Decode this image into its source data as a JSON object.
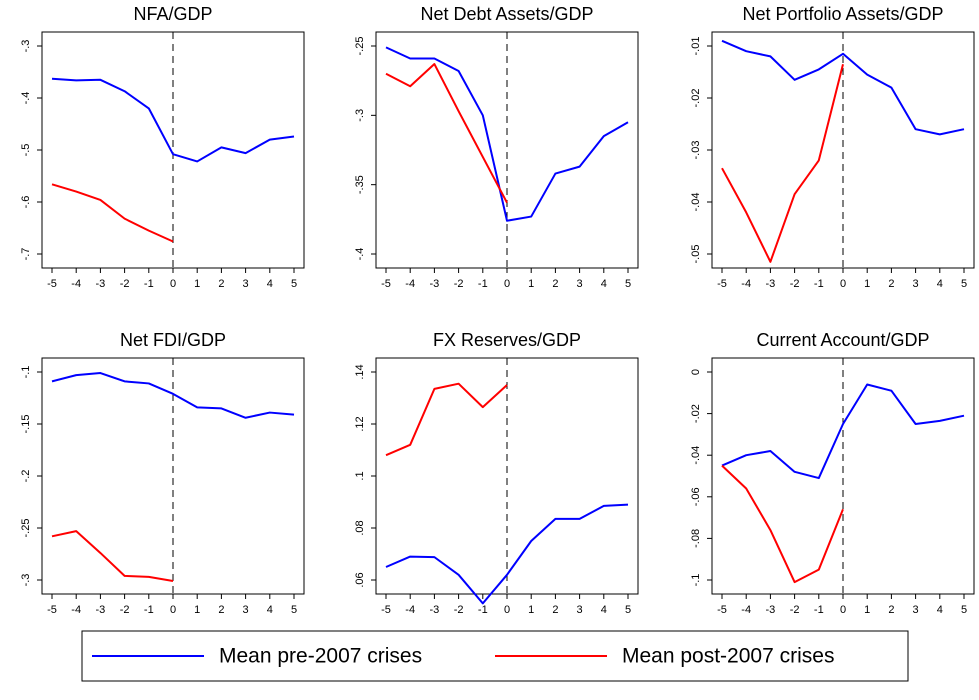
{
  "chart_data": [
    {
      "type": "line",
      "title": "NFA/GDP",
      "x": [
        -5,
        -4,
        -3,
        -2,
        -1,
        0,
        1,
        2,
        3,
        4,
        5
      ],
      "xlim": [
        -5,
        5
      ],
      "xticks": [
        -5,
        -4,
        -3,
        -2,
        -1,
        0,
        1,
        2,
        3,
        4,
        5
      ],
      "ylim": [
        -0.7,
        -0.3
      ],
      "yticks": [
        {
          "value": -0.3,
          "label": "-.3"
        },
        {
          "value": -0.4,
          "label": "-.4"
        },
        {
          "value": -0.5,
          "label": "-.5"
        },
        {
          "value": -0.6,
          "label": "-.6"
        },
        {
          "value": -0.7,
          "label": "-.7"
        }
      ],
      "vline": 0,
      "series": [
        {
          "name": "Mean pre-2007 crises",
          "color": "#0000ff",
          "values": [
            -0.363,
            -0.366,
            -0.365,
            -0.387,
            -0.42,
            -0.508,
            -0.522,
            -0.495,
            -0.506,
            -0.48,
            -0.474
          ]
        },
        {
          "name": "Mean post-2007 crises",
          "color": "#ff0000",
          "values": [
            -0.566,
            -0.58,
            -0.596,
            -0.632,
            -0.655,
            -0.676,
            null,
            null,
            null,
            null,
            null
          ]
        }
      ]
    },
    {
      "type": "line",
      "title": "Net Debt Assets/GDP",
      "x": [
        -5,
        -4,
        -3,
        -2,
        -1,
        0,
        1,
        2,
        3,
        4,
        5
      ],
      "xlim": [
        -5,
        5
      ],
      "xticks": [
        -5,
        -4,
        -3,
        -2,
        -1,
        0,
        1,
        2,
        3,
        4,
        5
      ],
      "ylim": [
        -0.4,
        -0.25
      ],
      "yticks": [
        {
          "value": -0.25,
          "label": "-.25"
        },
        {
          "value": -0.3,
          "label": "-.3"
        },
        {
          "value": -0.35,
          "label": "-.35"
        },
        {
          "value": -0.4,
          "label": "-.4"
        }
      ],
      "vline": 0,
      "series": [
        {
          "color": "#0000ff",
          "values": [
            -0.251,
            -0.259,
            -0.259,
            -0.268,
            -0.3,
            -0.376,
            -0.373,
            -0.342,
            -0.337,
            -0.315,
            -0.305
          ]
        },
        {
          "color": "#ff0000",
          "values": [
            -0.27,
            -0.279,
            -0.263,
            -0.297,
            -0.33,
            -0.363,
            null,
            null,
            null,
            null,
            null
          ]
        }
      ]
    },
    {
      "type": "line",
      "title": "Net Portfolio Assets/GDP",
      "x": [
        -5,
        -4,
        -3,
        -2,
        -1,
        0,
        1,
        2,
        3,
        4,
        5
      ],
      "xlim": [
        -5,
        5
      ],
      "xticks": [
        -5,
        -4,
        -3,
        -2,
        -1,
        0,
        1,
        2,
        3,
        4,
        5
      ],
      "ylim": [
        -0.05,
        -0.01
      ],
      "yticks": [
        {
          "value": -0.01,
          "label": "-.01"
        },
        {
          "value": -0.02,
          "label": "-.02"
        },
        {
          "value": -0.03,
          "label": "-.03"
        },
        {
          "value": -0.04,
          "label": "-.04"
        },
        {
          "value": -0.05,
          "label": "-.05"
        }
      ],
      "vline": 0,
      "series": [
        {
          "color": "#0000ff",
          "values": [
            -0.009,
            -0.011,
            -0.012,
            -0.0165,
            -0.0145,
            -0.0115,
            -0.0155,
            -0.018,
            -0.026,
            -0.027,
            -0.026
          ]
        },
        {
          "color": "#ff0000",
          "values": [
            -0.0335,
            -0.042,
            -0.0515,
            -0.0385,
            -0.032,
            -0.0135,
            null,
            null,
            null,
            null,
            null
          ]
        }
      ]
    },
    {
      "type": "line",
      "title": "Net FDI/GDP",
      "x": [
        -5,
        -4,
        -3,
        -2,
        -1,
        0,
        1,
        2,
        3,
        4,
        5
      ],
      "xlim": [
        -5,
        5
      ],
      "xticks": [
        -5,
        -4,
        -3,
        -2,
        -1,
        0,
        1,
        2,
        3,
        4,
        5
      ],
      "ylim": [
        -0.3,
        -0.1
      ],
      "yticks": [
        {
          "value": -0.1,
          "label": "-.1"
        },
        {
          "value": -0.15,
          "label": "-.15"
        },
        {
          "value": -0.2,
          "label": "-.2"
        },
        {
          "value": -0.25,
          "label": "-.25"
        },
        {
          "value": -0.3,
          "label": "-.3"
        }
      ],
      "vline": 0,
      "series": [
        {
          "color": "#0000ff",
          "values": [
            -0.109,
            -0.103,
            -0.101,
            -0.109,
            -0.111,
            -0.121,
            -0.134,
            -0.135,
            -0.144,
            -0.139,
            -0.141
          ]
        },
        {
          "color": "#ff0000",
          "values": [
            -0.258,
            -0.253,
            -0.274,
            -0.296,
            -0.297,
            -0.301,
            null,
            null,
            null,
            null,
            null
          ]
        }
      ]
    },
    {
      "type": "line",
      "title": "FX Reserves/GDP",
      "x": [
        -5,
        -4,
        -3,
        -2,
        -1,
        0,
        1,
        2,
        3,
        4,
        5
      ],
      "xlim": [
        -5,
        5
      ],
      "xticks": [
        -5,
        -4,
        -3,
        -2,
        -1,
        0,
        1,
        2,
        3,
        4,
        5
      ],
      "ylim": [
        0.06,
        0.14
      ],
      "yticks": [
        {
          "value": 0.06,
          "label": ".06"
        },
        {
          "value": 0.08,
          "label": ".08"
        },
        {
          "value": 0.1,
          "label": ".1"
        },
        {
          "value": 0.12,
          "label": ".12"
        },
        {
          "value": 0.14,
          "label": ".14"
        }
      ],
      "vline": 0,
      "series": [
        {
          "color": "#0000ff",
          "values": [
            0.065,
            0.069,
            0.0688,
            0.062,
            0.051,
            0.062,
            0.075,
            0.0835,
            0.0835,
            0.0885,
            0.089
          ]
        },
        {
          "color": "#ff0000",
          "values": [
            0.108,
            0.112,
            0.1335,
            0.1355,
            0.1265,
            0.135,
            null,
            null,
            null,
            null,
            null
          ]
        }
      ]
    },
    {
      "type": "line",
      "title": "Current Account/GDP",
      "x": [
        -5,
        -4,
        -3,
        -2,
        -1,
        0,
        1,
        2,
        3,
        4,
        5
      ],
      "xlim": [
        -5,
        5
      ],
      "xticks": [
        -5,
        -4,
        -3,
        -2,
        -1,
        0,
        1,
        2,
        3,
        4,
        5
      ],
      "ylim": [
        -0.1,
        0
      ],
      "yticks": [
        0,
        {
          "value": -0.02,
          "label": "-.02"
        },
        {
          "value": -0.04,
          "label": "-.04"
        },
        {
          "value": -0.06,
          "label": "-.06"
        },
        {
          "value": -0.08,
          "label": "-.08"
        },
        {
          "value": -0.1,
          "label": "-.1"
        }
      ],
      "vline": 0,
      "series": [
        {
          "color": "#0000ff",
          "values": [
            -0.045,
            -0.04,
            -0.038,
            -0.048,
            -0.051,
            -0.025,
            -0.006,
            -0.009,
            -0.025,
            -0.0235,
            -0.021
          ]
        },
        {
          "color": "#ff0000",
          "values": [
            -0.045,
            -0.056,
            -0.076,
            -0.101,
            -0.095,
            -0.066,
            null,
            null,
            null,
            null,
            null
          ]
        }
      ]
    }
  ]
}
